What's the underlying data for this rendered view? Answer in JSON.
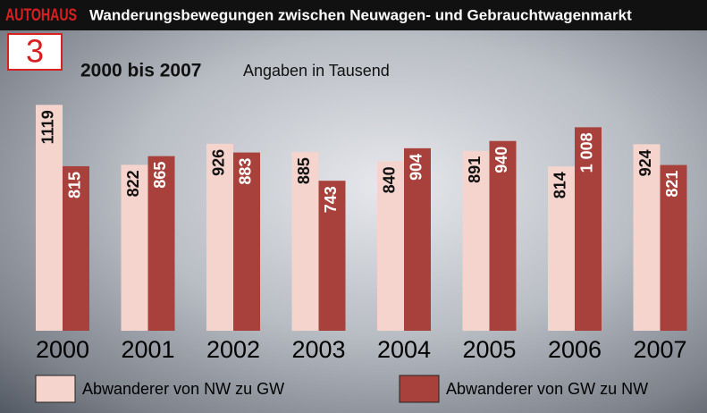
{
  "chart_data": {
    "type": "bar",
    "brand": "AUTOHAUS",
    "badge": "3",
    "title": "Wanderungsbewegungen zwischen Neuwagen- und Gebrauchtwagenmarkt",
    "subtitle": "2000 bis 2007",
    "note": "Angaben in Tausend",
    "categories": [
      "2000",
      "2001",
      "2002",
      "2003",
      "2004",
      "2005",
      "2006",
      "2007"
    ],
    "series": [
      {
        "name": "Abwanderer von NW zu GW",
        "color": "#f4d4cc",
        "values": [
          1119,
          822,
          926,
          885,
          840,
          891,
          814,
          924
        ],
        "value_labels": [
          "1119",
          "822",
          "926",
          "885",
          "840",
          "891",
          "814",
          "924"
        ]
      },
      {
        "name": "Abwanderer von GW zu NW",
        "color": "#a8413b",
        "values": [
          815,
          865,
          883,
          743,
          904,
          940,
          1008,
          821
        ],
        "value_labels": [
          "815",
          "865",
          "883",
          "743",
          "904",
          "940",
          "1 008",
          "821"
        ]
      }
    ],
    "ylim": [
      0,
      1200
    ]
  }
}
